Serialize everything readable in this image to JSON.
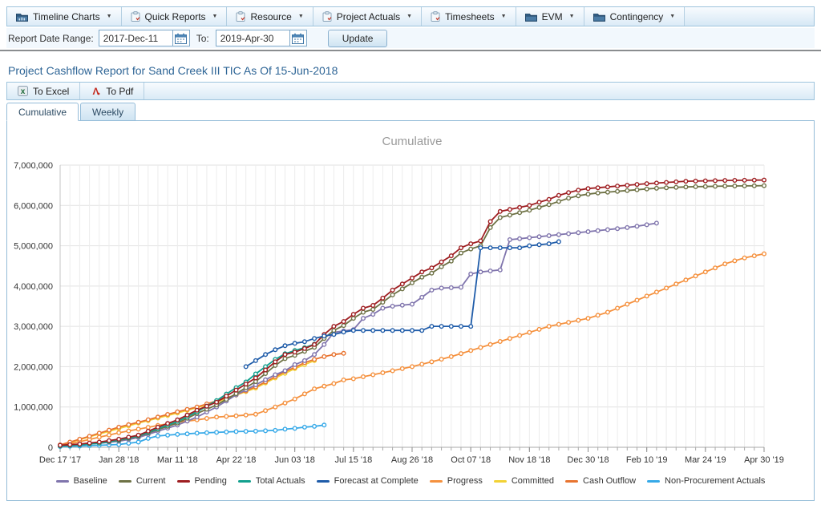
{
  "menubar": {
    "items": [
      {
        "label": "Timeline Charts",
        "icon": "folder-chart-icon"
      },
      {
        "label": "Quick Reports",
        "icon": "clipboard-icon"
      },
      {
        "label": "Resource",
        "icon": "clipboard-icon"
      },
      {
        "label": "Project Actuals",
        "icon": "clipboard-icon"
      },
      {
        "label": "Timesheets",
        "icon": "clipboard-icon"
      },
      {
        "label": "EVM",
        "icon": "folder-icon"
      },
      {
        "label": "Contingency",
        "icon": "folder-icon"
      }
    ]
  },
  "date_range": {
    "label": "Report Date Range:",
    "from_value": "2017-Dec-11",
    "to_label": "To:",
    "to_value": "2019-Apr-30",
    "update_label": "Update"
  },
  "page_title": "Project Cashflow Report for Sand Creek III TIC As Of 15-Jun-2018",
  "export_toolbar": {
    "to_excel_label": "To Excel",
    "to_pdf_label": "To Pdf"
  },
  "tabs": [
    {
      "label": "Cumulative",
      "active": true
    },
    {
      "label": "Weekly",
      "active": false
    }
  ],
  "chart_data": {
    "type": "line",
    "title": "Cumulative",
    "title_color": "#9a9a9a",
    "x_unit": "weeks since 2017-Dec-11",
    "x_range_weeks": [
      0,
      72
    ],
    "x_tick_weeks": [
      0,
      6,
      12,
      18,
      24,
      30,
      36,
      42,
      48,
      54,
      60,
      66,
      72
    ],
    "x_tick_labels": [
      "Dec 17 '17",
      "Jan 28 '18",
      "Mar 11 '18",
      "Apr 22 '18",
      "Jun 03 '18",
      "Jul 15 '18",
      "Aug 26 '18",
      "Oct 07 '18",
      "Nov 18 '18",
      "Dec 30 '18",
      "Feb 10 '19",
      "Mar 24 '19",
      "Apr 30 '19"
    ],
    "ylim": [
      0,
      7000000
    ],
    "y_ticks": [
      0,
      1000000,
      2000000,
      3000000,
      4000000,
      5000000,
      6000000,
      7000000
    ],
    "grid": true,
    "legend_position": "bottom",
    "values_unit": "millions_usd",
    "marker": "open-circle-weekly",
    "draw_order": [
      "Committed",
      "Progress",
      "Cash Outflow",
      "Non-Procurement Actuals",
      "Baseline",
      "Current",
      "Total Actuals",
      "Pending",
      "Forecast at Complete"
    ],
    "series": [
      {
        "name": "Baseline",
        "color": "#8075AD",
        "points": [
          [
            0,
            0.03
          ],
          [
            2,
            0.06
          ],
          [
            4,
            0.1
          ],
          [
            6,
            0.15
          ],
          [
            8,
            0.24
          ],
          [
            10,
            0.4
          ],
          [
            12,
            0.55
          ],
          [
            14,
            0.75
          ],
          [
            16,
            1.0
          ],
          [
            18,
            1.3
          ],
          [
            20,
            1.55
          ],
          [
            22,
            1.8
          ],
          [
            23,
            1.9
          ],
          [
            24,
            2.05
          ],
          [
            25,
            2.15
          ],
          [
            26,
            2.3
          ],
          [
            27,
            2.55
          ],
          [
            28,
            2.85
          ],
          [
            30,
            2.92
          ],
          [
            31,
            3.2
          ],
          [
            32,
            3.3
          ],
          [
            33,
            3.45
          ],
          [
            34,
            3.5
          ],
          [
            36,
            3.55
          ],
          [
            37,
            3.72
          ],
          [
            38,
            3.9
          ],
          [
            39,
            3.95
          ],
          [
            41,
            3.97
          ],
          [
            42,
            4.3
          ],
          [
            43,
            4.35
          ],
          [
            45,
            4.4
          ],
          [
            46,
            5.15
          ],
          [
            48,
            5.2
          ],
          [
            50,
            5.25
          ],
          [
            52,
            5.3
          ],
          [
            54,
            5.35
          ],
          [
            56,
            5.4
          ],
          [
            58,
            5.45
          ],
          [
            60,
            5.52
          ],
          [
            61,
            5.56
          ]
        ]
      },
      {
        "name": "Current",
        "color": "#6E7245",
        "points": [
          [
            0,
            0.04
          ],
          [
            2,
            0.07
          ],
          [
            4,
            0.11
          ],
          [
            6,
            0.17
          ],
          [
            8,
            0.27
          ],
          [
            10,
            0.44
          ],
          [
            12,
            0.6
          ],
          [
            14,
            0.84
          ],
          [
            16,
            1.05
          ],
          [
            18,
            1.33
          ],
          [
            20,
            1.63
          ],
          [
            22,
            2.03
          ],
          [
            23,
            2.2
          ],
          [
            24,
            2.28
          ],
          [
            25,
            2.38
          ],
          [
            26,
            2.48
          ],
          [
            27,
            2.7
          ],
          [
            28,
            2.9
          ],
          [
            29,
            3.02
          ],
          [
            30,
            3.2
          ],
          [
            31,
            3.35
          ],
          [
            32,
            3.42
          ],
          [
            33,
            3.6
          ],
          [
            34,
            3.78
          ],
          [
            35,
            3.93
          ],
          [
            36,
            4.08
          ],
          [
            37,
            4.22
          ],
          [
            38,
            4.32
          ],
          [
            39,
            4.48
          ],
          [
            40,
            4.62
          ],
          [
            41,
            4.82
          ],
          [
            42,
            4.92
          ],
          [
            43,
            5.0
          ],
          [
            44,
            5.45
          ],
          [
            45,
            5.7
          ],
          [
            46,
            5.76
          ],
          [
            47,
            5.82
          ],
          [
            48,
            5.88
          ],
          [
            49,
            5.95
          ],
          [
            50,
            6.02
          ],
          [
            51,
            6.1
          ],
          [
            52,
            6.18
          ],
          [
            53,
            6.24
          ],
          [
            54,
            6.28
          ],
          [
            55,
            6.31
          ],
          [
            56,
            6.33
          ],
          [
            58,
            6.37
          ],
          [
            60,
            6.41
          ],
          [
            62,
            6.44
          ],
          [
            64,
            6.46
          ],
          [
            66,
            6.47
          ],
          [
            68,
            6.48
          ],
          [
            72,
            6.49
          ]
        ]
      },
      {
        "name": "Pending",
        "color": "#9E1E21",
        "points": [
          [
            0,
            0.05
          ],
          [
            2,
            0.08
          ],
          [
            4,
            0.13
          ],
          [
            6,
            0.2
          ],
          [
            8,
            0.3
          ],
          [
            10,
            0.5
          ],
          [
            12,
            0.68
          ],
          [
            14,
            0.92
          ],
          [
            16,
            1.12
          ],
          [
            17,
            1.27
          ],
          [
            18,
            1.42
          ],
          [
            19,
            1.57
          ],
          [
            20,
            1.72
          ],
          [
            21,
            1.92
          ],
          [
            22,
            2.12
          ],
          [
            23,
            2.3
          ],
          [
            24,
            2.36
          ],
          [
            25,
            2.45
          ],
          [
            26,
            2.55
          ],
          [
            27,
            2.8
          ],
          [
            28,
            3.0
          ],
          [
            29,
            3.12
          ],
          [
            30,
            3.3
          ],
          [
            31,
            3.45
          ],
          [
            32,
            3.52
          ],
          [
            33,
            3.7
          ],
          [
            34,
            3.9
          ],
          [
            35,
            4.05
          ],
          [
            36,
            4.2
          ],
          [
            37,
            4.35
          ],
          [
            38,
            4.45
          ],
          [
            39,
            4.6
          ],
          [
            40,
            4.75
          ],
          [
            41,
            4.95
          ],
          [
            42,
            5.05
          ],
          [
            43,
            5.12
          ],
          [
            44,
            5.6
          ],
          [
            45,
            5.85
          ],
          [
            46,
            5.9
          ],
          [
            47,
            5.95
          ],
          [
            48,
            6.0
          ],
          [
            49,
            6.08
          ],
          [
            50,
            6.15
          ],
          [
            51,
            6.25
          ],
          [
            52,
            6.32
          ],
          [
            53,
            6.38
          ],
          [
            54,
            6.42
          ],
          [
            56,
            6.46
          ],
          [
            58,
            6.5
          ],
          [
            60,
            6.54
          ],
          [
            62,
            6.57
          ],
          [
            64,
            6.6
          ],
          [
            66,
            6.61
          ],
          [
            68,
            6.62
          ],
          [
            72,
            6.63
          ]
        ]
      },
      {
        "name": "Total Actuals",
        "color": "#12A08E",
        "points": [
          [
            0,
            0.03
          ],
          [
            2,
            0.06
          ],
          [
            4,
            0.1
          ],
          [
            6,
            0.18
          ],
          [
            8,
            0.28
          ],
          [
            10,
            0.46
          ],
          [
            12,
            0.64
          ],
          [
            14,
            0.88
          ],
          [
            16,
            1.16
          ],
          [
            17,
            1.32
          ],
          [
            18,
            1.48
          ],
          [
            19,
            1.62
          ],
          [
            20,
            1.82
          ],
          [
            21,
            2.0
          ],
          [
            22,
            2.18
          ],
          [
            23,
            2.32
          ],
          [
            24,
            2.4
          ],
          [
            25,
            2.47
          ],
          [
            26,
            2.56
          ]
        ]
      },
      {
        "name": "Forecast at Complete",
        "color": "#1F5CA9",
        "points": [
          [
            19,
            2.0
          ],
          [
            20,
            2.15
          ],
          [
            21,
            2.3
          ],
          [
            22,
            2.42
          ],
          [
            23,
            2.52
          ],
          [
            24,
            2.58
          ],
          [
            25,
            2.62
          ],
          [
            26,
            2.7
          ],
          [
            27,
            2.76
          ],
          [
            28,
            2.8
          ],
          [
            29,
            2.86
          ],
          [
            30,
            2.9
          ],
          [
            37,
            2.9
          ],
          [
            38,
            3.0
          ],
          [
            42,
            3.0
          ],
          [
            43,
            4.95
          ],
          [
            47,
            4.95
          ],
          [
            48,
            5.0
          ],
          [
            50,
            5.05
          ],
          [
            51,
            5.1
          ]
        ]
      },
      {
        "name": "Progress",
        "color": "#F5913E",
        "points": [
          [
            0,
            0.04
          ],
          [
            2,
            0.14
          ],
          [
            4,
            0.25
          ],
          [
            6,
            0.36
          ],
          [
            8,
            0.45
          ],
          [
            10,
            0.54
          ],
          [
            12,
            0.62
          ],
          [
            14,
            0.68
          ],
          [
            16,
            0.75
          ],
          [
            18,
            0.78
          ],
          [
            20,
            0.82
          ],
          [
            22,
            1.0
          ],
          [
            24,
            1.2
          ],
          [
            26,
            1.45
          ],
          [
            28,
            1.58
          ],
          [
            29,
            1.67
          ],
          [
            30,
            1.7
          ],
          [
            32,
            1.8
          ],
          [
            34,
            1.9
          ],
          [
            36,
            2.0
          ],
          [
            38,
            2.12
          ],
          [
            40,
            2.25
          ],
          [
            42,
            2.4
          ],
          [
            44,
            2.55
          ],
          [
            46,
            2.7
          ],
          [
            48,
            2.85
          ],
          [
            50,
            3.0
          ],
          [
            52,
            3.1
          ],
          [
            54,
            3.2
          ],
          [
            56,
            3.35
          ],
          [
            58,
            3.55
          ],
          [
            60,
            3.75
          ],
          [
            62,
            3.95
          ],
          [
            64,
            4.15
          ],
          [
            66,
            4.35
          ],
          [
            68,
            4.55
          ],
          [
            70,
            4.7
          ],
          [
            72,
            4.8
          ]
        ]
      },
      {
        "name": "Committed",
        "color": "#F2D235",
        "points": [
          [
            0,
            0.05
          ],
          [
            4,
            0.33
          ],
          [
            8,
            0.6
          ],
          [
            12,
            0.85
          ],
          [
            16,
            1.12
          ],
          [
            20,
            1.47
          ],
          [
            22,
            1.72
          ],
          [
            24,
            1.95
          ],
          [
            26,
            2.15
          ]
        ]
      },
      {
        "name": "Cash Outflow",
        "color": "#E87430",
        "points": [
          [
            0,
            0.06
          ],
          [
            2,
            0.2
          ],
          [
            4,
            0.35
          ],
          [
            6,
            0.5
          ],
          [
            8,
            0.62
          ],
          [
            10,
            0.75
          ],
          [
            12,
            0.88
          ],
          [
            14,
            1.0
          ],
          [
            16,
            1.15
          ],
          [
            18,
            1.3
          ],
          [
            20,
            1.5
          ],
          [
            21,
            1.62
          ],
          [
            22,
            1.75
          ],
          [
            23,
            1.88
          ],
          [
            24,
            1.98
          ],
          [
            25,
            2.1
          ],
          [
            26,
            2.18
          ],
          [
            27,
            2.25
          ],
          [
            28,
            2.3
          ],
          [
            29,
            2.33
          ]
        ]
      },
      {
        "name": "Non-Procurement Actuals",
        "color": "#36A9E8",
        "points": [
          [
            0,
            0.02
          ],
          [
            2,
            0.03
          ],
          [
            4,
            0.05
          ],
          [
            6,
            0.07
          ],
          [
            7,
            0.1
          ],
          [
            8,
            0.13
          ],
          [
            9,
            0.22
          ],
          [
            10,
            0.28
          ],
          [
            11,
            0.3
          ],
          [
            12,
            0.32
          ],
          [
            14,
            0.35
          ],
          [
            16,
            0.37
          ],
          [
            18,
            0.39
          ],
          [
            20,
            0.4
          ],
          [
            22,
            0.42
          ],
          [
            23,
            0.45
          ],
          [
            24,
            0.47
          ],
          [
            25,
            0.5
          ],
          [
            26,
            0.52
          ],
          [
            27,
            0.55
          ]
        ]
      }
    ]
  }
}
